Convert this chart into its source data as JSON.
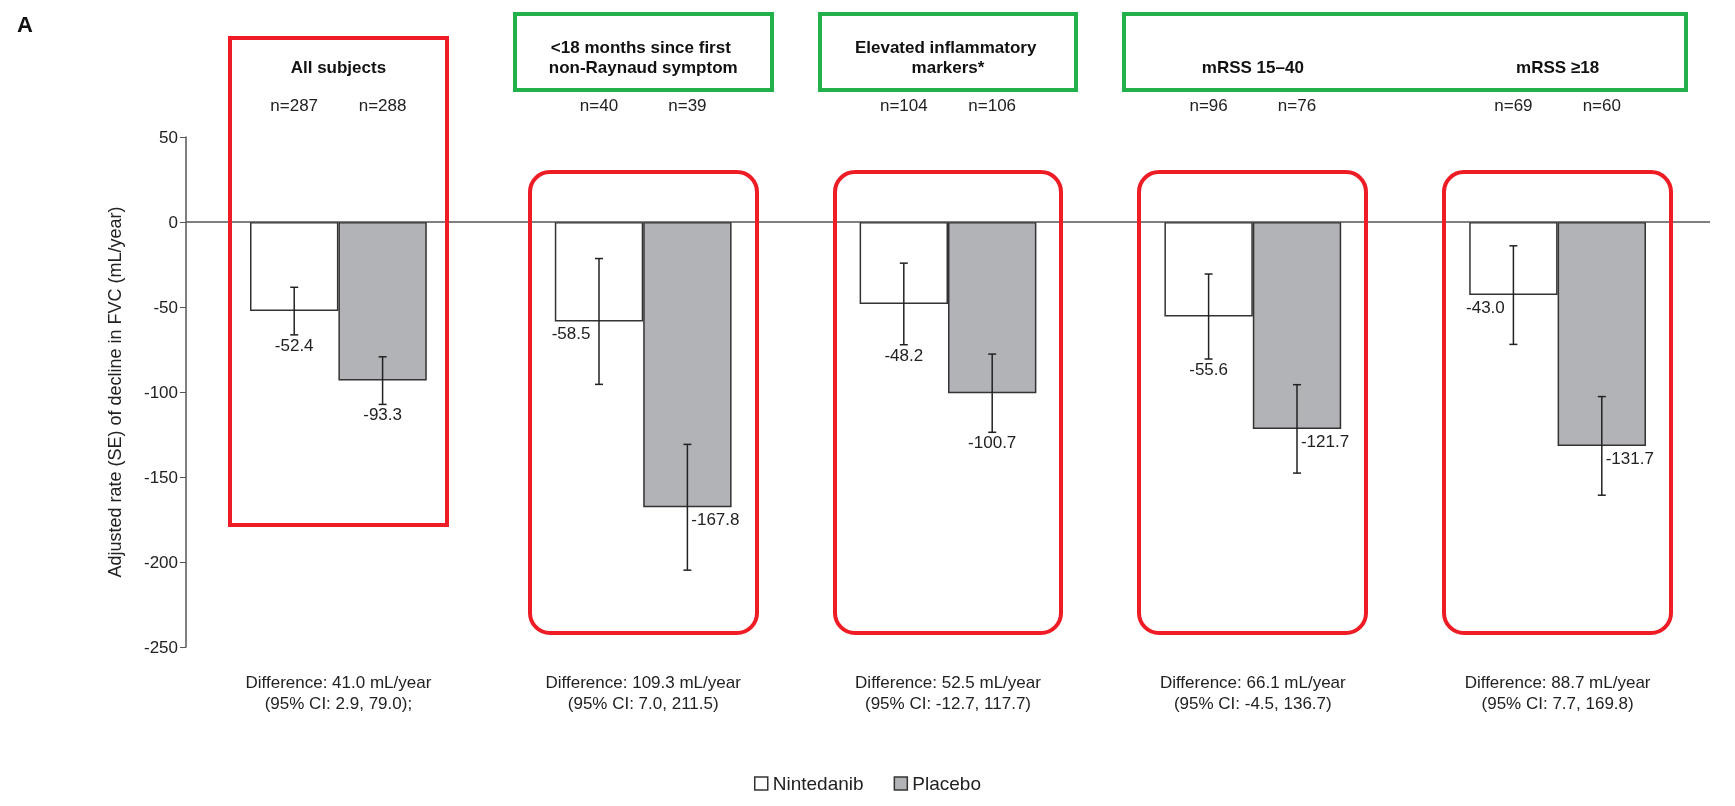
{
  "chart_data": {
    "type": "bar",
    "title": "A",
    "ylabel": "Adjusted rate (SE) of decline in FVC (mL/year)",
    "categories": [
      "All subjects",
      "<18 months since first non-Raynaud symptom",
      "Elevated inflammatory markers*",
      "mRSS 15–40",
      "mRSS ≥18"
    ],
    "series": [
      {
        "name": "Nintedanib",
        "color": "#ffffff",
        "values": [
          -52.4,
          -58.5,
          -48.2,
          -55.6,
          -43.0
        ],
        "value_labels": [
          "-52.4",
          "-58.5",
          "-48.2",
          "-55.6",
          "-43.0"
        ],
        "errors": [
          14,
          37,
          24,
          25,
          29
        ]
      },
      {
        "name": "Placebo",
        "color": "#b2b3b7",
        "values": [
          -93.3,
          -167.8,
          -100.7,
          -121.7,
          -131.7
        ],
        "value_labels": [
          "-93.3",
          "-167.8",
          "-100.7",
          "-121.7",
          "-131.7"
        ],
        "errors": [
          14,
          37,
          23,
          26,
          29
        ]
      }
    ],
    "ylim": [
      -250,
      50
    ],
    "yticks": [
      -250,
      -200,
      -150,
      -100,
      -50,
      0,
      50
    ],
    "legend": "bottom",
    "ref_lines": [
      {
        "axis": "y",
        "value": 0,
        "color": "#555555"
      }
    ],
    "annotations": [
      "n=287",
      "n=288",
      "n=40",
      "n=39",
      "n=104",
      "n=106",
      "n=96",
      "n=76",
      "n=69",
      "n=60",
      "Difference: 41.0 mL/year\n(95% CI: 2.9, 79.0);",
      "Difference: 109.3 mL/year\n(95% CI: 7.0, 211.5)",
      "Difference: 52.5 mL/year\n(95% CI: -12.7, 117.7)",
      "Difference: 66.1 mL/year\n(95% CI: -4.5, 136.7)",
      "Difference: 88.7 mL/year\n(95% CI: 7.7, 169.8)"
    ]
  }
}
